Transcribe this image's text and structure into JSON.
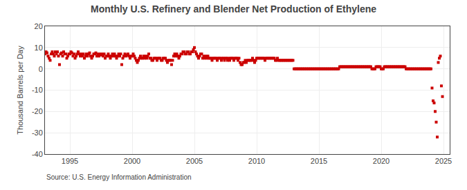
{
  "chart_data": {
    "type": "scatter",
    "title": "Monthly U.S. Refinery and Blender Net Production of Ethylene",
    "ylabel": "Thousand Barrels per Day",
    "annotations": [
      "Source: U.S. Energy Information Administration"
    ],
    "color": "#cc0000",
    "marker": "square",
    "grid": true,
    "xlim": [
      1993.0,
      2025.5
    ],
    "xticks": [
      1995,
      2000,
      2005,
      2010,
      2015,
      2020,
      2025
    ],
    "ylim": [
      -40,
      20
    ],
    "yticks": [
      -40,
      -30,
      -20,
      -10,
      0,
      10,
      20
    ],
    "x": [
      1993.0,
      1993.083,
      1993.167,
      1993.25,
      1993.333,
      1993.417,
      1993.5,
      1993.583,
      1993.667,
      1993.75,
      1993.833,
      1993.917,
      1994.0,
      1994.083,
      1994.167,
      1994.25,
      1994.333,
      1994.417,
      1994.5,
      1994.583,
      1994.667,
      1994.75,
      1994.833,
      1994.917,
      1995.0,
      1995.083,
      1995.167,
      1995.25,
      1995.333,
      1995.417,
      1995.5,
      1995.583,
      1995.667,
      1995.75,
      1995.833,
      1995.917,
      1996.0,
      1996.083,
      1996.167,
      1996.25,
      1996.333,
      1996.417,
      1996.5,
      1996.583,
      1996.667,
      1996.75,
      1996.833,
      1996.917,
      1997.0,
      1997.083,
      1997.167,
      1997.25,
      1997.333,
      1997.417,
      1997.5,
      1997.583,
      1997.667,
      1997.75,
      1997.833,
      1997.917,
      1998.0,
      1998.083,
      1998.167,
      1998.25,
      1998.333,
      1998.417,
      1998.5,
      1998.583,
      1998.667,
      1998.75,
      1998.833,
      1998.917,
      1999.0,
      1999.083,
      1999.167,
      1999.25,
      1999.333,
      1999.417,
      1999.5,
      1999.583,
      1999.667,
      1999.75,
      1999.833,
      1999.917,
      2000.0,
      2000.083,
      2000.167,
      2000.25,
      2000.333,
      2000.417,
      2000.5,
      2000.583,
      2000.667,
      2000.75,
      2000.833,
      2000.917,
      2001.0,
      2001.083,
      2001.167,
      2001.25,
      2001.333,
      2001.417,
      2001.5,
      2001.583,
      2001.667,
      2001.75,
      2001.833,
      2001.917,
      2002.0,
      2002.083,
      2002.167,
      2002.25,
      2002.333,
      2002.417,
      2002.5,
      2002.583,
      2002.667,
      2002.75,
      2002.833,
      2002.917,
      2003.0,
      2003.083,
      2003.167,
      2003.25,
      2003.333,
      2003.417,
      2003.5,
      2003.583,
      2003.667,
      2003.75,
      2003.833,
      2003.917,
      2004.0,
      2004.083,
      2004.167,
      2004.25,
      2004.333,
      2004.417,
      2004.5,
      2004.583,
      2004.667,
      2004.75,
      2004.833,
      2004.917,
      2005.0,
      2005.083,
      2005.167,
      2005.25,
      2005.333,
      2005.417,
      2005.5,
      2005.583,
      2005.667,
      2005.75,
      2005.833,
      2005.917,
      2006.0,
      2006.083,
      2006.167,
      2006.25,
      2006.333,
      2006.417,
      2006.5,
      2006.583,
      2006.667,
      2006.75,
      2006.833,
      2006.917,
      2007.0,
      2007.083,
      2007.167,
      2007.25,
      2007.333,
      2007.417,
      2007.5,
      2007.583,
      2007.667,
      2007.75,
      2007.833,
      2007.917,
      2008.0,
      2008.083,
      2008.167,
      2008.25,
      2008.333,
      2008.417,
      2008.5,
      2008.583,
      2008.667,
      2008.75,
      2008.833,
      2008.917,
      2009.0,
      2009.083,
      2009.167,
      2009.25,
      2009.333,
      2009.417,
      2009.5,
      2009.583,
      2009.667,
      2009.75,
      2009.833,
      2009.917,
      2010.0,
      2010.083,
      2010.167,
      2010.25,
      2010.333,
      2010.417,
      2010.5,
      2010.583,
      2010.667,
      2010.75,
      2010.833,
      2010.917,
      2011.0,
      2011.083,
      2011.167,
      2011.25,
      2011.333,
      2011.417,
      2011.5,
      2011.583,
      2011.667,
      2011.75,
      2011.833,
      2011.917,
      2012.0,
      2012.083,
      2012.167,
      2012.25,
      2012.333,
      2012.417,
      2012.5,
      2012.583,
      2012.667,
      2012.75,
      2012.833,
      2012.917,
      2013.0,
      2013.083,
      2013.167,
      2013.25,
      2013.333,
      2013.417,
      2013.5,
      2013.583,
      2013.667,
      2013.75,
      2013.833,
      2013.917,
      2014.0,
      2014.083,
      2014.167,
      2014.25,
      2014.333,
      2014.417,
      2014.5,
      2014.583,
      2014.667,
      2014.75,
      2014.833,
      2014.917,
      2015.0,
      2015.083,
      2015.167,
      2015.25,
      2015.333,
      2015.417,
      2015.5,
      2015.583,
      2015.667,
      2015.75,
      2015.833,
      2015.917,
      2016.0,
      2016.083,
      2016.167,
      2016.25,
      2016.333,
      2016.417,
      2016.5,
      2016.583,
      2016.667,
      2016.75,
      2016.833,
      2016.917,
      2017.0,
      2017.083,
      2017.167,
      2017.25,
      2017.333,
      2017.417,
      2017.5,
      2017.583,
      2017.667,
      2017.75,
      2017.833,
      2017.917,
      2018.0,
      2018.083,
      2018.167,
      2018.25,
      2018.333,
      2018.417,
      2018.5,
      2018.583,
      2018.667,
      2018.75,
      2018.833,
      2018.917,
      2019.0,
      2019.083,
      2019.167,
      2019.25,
      2019.333,
      2019.417,
      2019.5,
      2019.583,
      2019.667,
      2019.75,
      2019.833,
      2019.917,
      2020.0,
      2020.083,
      2020.167,
      2020.25,
      2020.333,
      2020.417,
      2020.5,
      2020.583,
      2020.667,
      2020.75,
      2020.833,
      2020.917,
      2021.0,
      2021.083,
      2021.167,
      2021.25,
      2021.333,
      2021.417,
      2021.5,
      2021.583,
      2021.667,
      2021.75,
      2021.833,
      2021.917,
      2022.0,
      2022.083,
      2022.167,
      2022.25,
      2022.333,
      2022.417,
      2022.5,
      2022.583,
      2022.667,
      2022.75,
      2022.833,
      2022.917,
      2023.0,
      2023.083,
      2023.167,
      2023.25,
      2023.333,
      2023.417,
      2023.5,
      2023.583,
      2023.667,
      2023.75,
      2023.833,
      2023.917,
      2024.0,
      2024.083,
      2024.167,
      2024.25,
      2024.333,
      2024.417,
      2024.5,
      2024.583,
      2024.667,
      2024.75,
      2024.833,
      2024.917
    ],
    "values": [
      7,
      8,
      7.5,
      6,
      5,
      4,
      7,
      8,
      7,
      6,
      8,
      7,
      8,
      6,
      2,
      7,
      7.5,
      6,
      8,
      7,
      7,
      5,
      6,
      7,
      7,
      8,
      7.5,
      6,
      7,
      5,
      6,
      7,
      8,
      7,
      6,
      7,
      6,
      7,
      5,
      6,
      7,
      6,
      7,
      7.5,
      6,
      5,
      6,
      7,
      7,
      7.5,
      6,
      7,
      6,
      7,
      6.5,
      7,
      6,
      7,
      5,
      6,
      6,
      7,
      6,
      5,
      6,
      7,
      6,
      7,
      6,
      5,
      6,
      7,
      6,
      7,
      2,
      5,
      6,
      7,
      6,
      6.5,
      7,
      6,
      5,
      6,
      6,
      7,
      6,
      5,
      4,
      3,
      4,
      5,
      6,
      5,
      5,
      6,
      5,
      6,
      5,
      6,
      7,
      5,
      5,
      4,
      4,
      5,
      5,
      5,
      4,
      5,
      5,
      5,
      4,
      4,
      5,
      5,
      5,
      4,
      3,
      4,
      4,
      4,
      2,
      4,
      6,
      7,
      6,
      7,
      6,
      5,
      6,
      7,
      7,
      8,
      8,
      7,
      7,
      8,
      8,
      7,
      7,
      8,
      8,
      9,
      10,
      8,
      7,
      6,
      5,
      6,
      7,
      7,
      5,
      6,
      5,
      6,
      5,
      6,
      5,
      5,
      5,
      4,
      5,
      5,
      5,
      5,
      4,
      5,
      5,
      5,
      4,
      5,
      5,
      4,
      5,
      5,
      4,
      5,
      4,
      5,
      5,
      5,
      4,
      5,
      5,
      5,
      4,
      5,
      3,
      2,
      2,
      3,
      3,
      4,
      3,
      4,
      4,
      4,
      4,
      4,
      5,
      4,
      3,
      4,
      5,
      5,
      5,
      5,
      5,
      5,
      5,
      5,
      4,
      5,
      5,
      5,
      5,
      5,
      5,
      5,
      5,
      5,
      4,
      4,
      5,
      4,
      4,
      4,
      4,
      4,
      4,
      4,
      4,
      4,
      4,
      4,
      4,
      4,
      4,
      4,
      0,
      0,
      0,
      0,
      0,
      0,
      0,
      0,
      0,
      0,
      0,
      0,
      0,
      0,
      0,
      0,
      0,
      0,
      0,
      0,
      0,
      0,
      0,
      0,
      0,
      0,
      0,
      0,
      0,
      0,
      0,
      0,
      0,
      0,
      0,
      0,
      0,
      0,
      0,
      0,
      0,
      0,
      0,
      0,
      1,
      1,
      1,
      1,
      1,
      1,
      1,
      1,
      1,
      1,
      1,
      1,
      1,
      1,
      1,
      1,
      1,
      1,
      1,
      1,
      1,
      1,
      1,
      1,
      1,
      1,
      1,
      1,
      1,
      1,
      1,
      0,
      0,
      0,
      0,
      1,
      1,
      1,
      1,
      1,
      0,
      0,
      0,
      1,
      1,
      1,
      1,
      1,
      1,
      1,
      1,
      1,
      1,
      1,
      1,
      1,
      1,
      1,
      1,
      1,
      1,
      1,
      1,
      1,
      0,
      0,
      0,
      0,
      0,
      0,
      0,
      0,
      0,
      0,
      0,
      0,
      0,
      0,
      0,
      0,
      0,
      0,
      0,
      0,
      0,
      0,
      0,
      0,
      0,
      -9,
      -15,
      -16,
      -20,
      -25,
      -32,
      3,
      5,
      6,
      -8,
      -13
    ]
  }
}
